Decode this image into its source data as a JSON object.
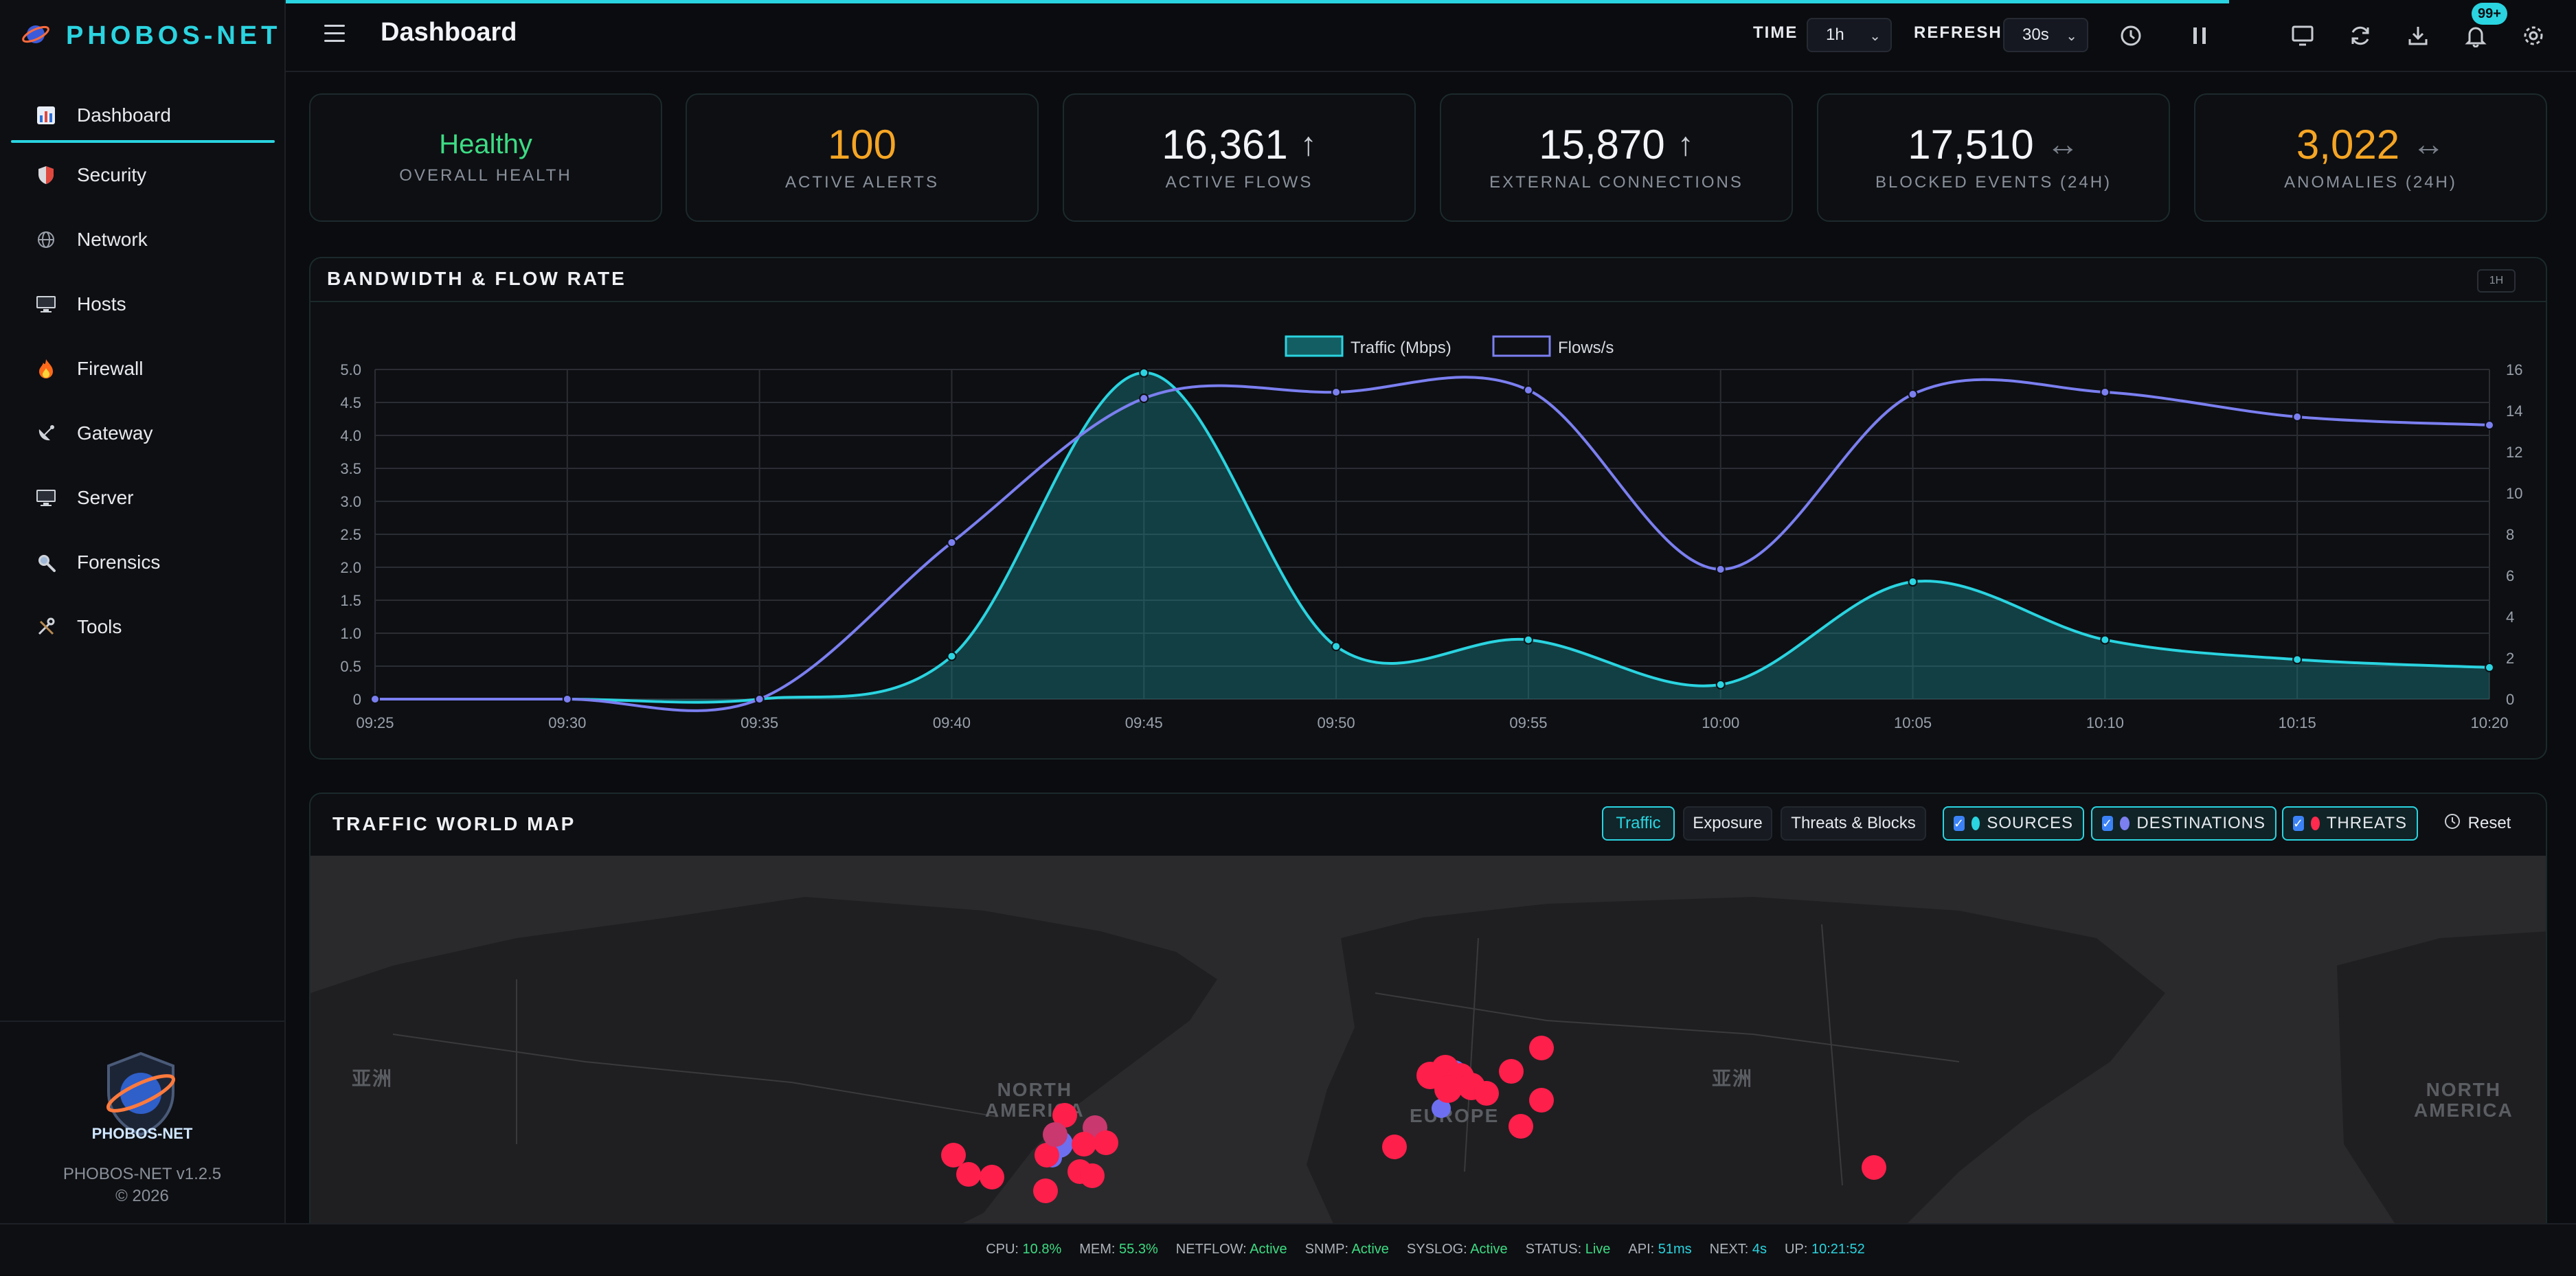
{
  "app": {
    "brand": "PHOBOS-NET",
    "version": "PHOBOS-NET v1.2.5",
    "copyright": "© 2026",
    "logo_text": "PHOBOS-NET"
  },
  "header": {
    "title": "Dashboard",
    "time_label": "TIME",
    "time_value": "1h",
    "refresh_label": "REFRESH",
    "refresh_value": "30s",
    "notifications_badge": "99+"
  },
  "sidebar": {
    "items": [
      {
        "label": "Dashboard",
        "icon": "chart-icon"
      },
      {
        "label": "Security",
        "icon": "shield-icon"
      },
      {
        "label": "Network",
        "icon": "globe-icon"
      },
      {
        "label": "Hosts",
        "icon": "monitor-icon"
      },
      {
        "label": "Firewall",
        "icon": "fire-icon"
      },
      {
        "label": "Gateway",
        "icon": "satellite-icon"
      },
      {
        "label": "Server",
        "icon": "desktop-icon"
      },
      {
        "label": "Forensics",
        "icon": "magnifier-icon"
      },
      {
        "label": "Tools",
        "icon": "tools-icon"
      }
    ]
  },
  "cards": [
    {
      "value": "Healthy",
      "label": "OVERALL HEALTH",
      "color": "#3ddc84",
      "arrow": ""
    },
    {
      "value": "100",
      "label": "ACTIVE ALERTS",
      "color": "#f5a524",
      "arrow": ""
    },
    {
      "value": "16,361",
      "label": "ACTIVE FLOWS",
      "color": "#f2f4f7",
      "arrow": "↑"
    },
    {
      "value": "15,870",
      "label": "EXTERNAL CONNECTIONS",
      "color": "#f2f4f7",
      "arrow": "↑"
    },
    {
      "value": "17,510",
      "label": "BLOCKED EVENTS (24H)",
      "color": "#f2f4f7",
      "arrow": "↔"
    },
    {
      "value": "3,022",
      "label": "ANOMALIES (24H)",
      "color": "#f5a524",
      "arrow": "↔"
    }
  ],
  "bandwidth": {
    "title": "BANDWIDTH & FLOW RATE",
    "range_tag": "1H"
  },
  "chart_data": {
    "type": "line",
    "x": [
      "09:25",
      "09:30",
      "09:35",
      "09:40",
      "09:45",
      "09:50",
      "09:55",
      "10:00",
      "10:05",
      "10:10",
      "10:15",
      "10:20"
    ],
    "series": [
      {
        "name": "Traffic (Mbps)",
        "axis": "left",
        "color": "#2ad4e0",
        "fill": true,
        "values": [
          0,
          0,
          0,
          0.65,
          4.95,
          0.8,
          0.9,
          0.22,
          1.78,
          0.9,
          0.6,
          0.48
        ]
      },
      {
        "name": "Flows/s",
        "axis": "right",
        "color": "#7b7ff0",
        "fill": false,
        "values": [
          0,
          0,
          0,
          7.6,
          14.6,
          14.9,
          15.0,
          6.3,
          14.8,
          14.9,
          13.7,
          13.3
        ]
      }
    ],
    "ylim_left": [
      0,
      5
    ],
    "yticks_left": [
      "0",
      "0.5",
      "1.0",
      "1.5",
      "2.0",
      "2.5",
      "3.0",
      "3.5",
      "4.0",
      "4.5",
      "5.0"
    ],
    "ylim_right": [
      0,
      16
    ],
    "yticks_right": [
      "0",
      "2",
      "4",
      "6",
      "8",
      "10",
      "12",
      "14",
      "16"
    ],
    "grid": true,
    "legend": "top-center"
  },
  "map": {
    "title": "TRAFFIC WORLD MAP",
    "modes": [
      "Traffic",
      "Exposure",
      "Threats & Blocks"
    ],
    "toggles": [
      {
        "label": "SOURCES",
        "color": "#2ad4e0"
      },
      {
        "label": "DESTINATIONS",
        "color": "#7b7ff0"
      },
      {
        "label": "THREATS",
        "color": "#ff2a4d"
      }
    ],
    "reset": "Reset",
    "zoom_in": "+",
    "zoom_out": "−",
    "labels": {
      "asia_left": "亚洲",
      "asia_mid": "亚洲",
      "north_america_1": "NORTH\nAMERICA",
      "europe": "EUROPE",
      "north_america_2": "NORTH\nAMERICA"
    }
  },
  "status": {
    "cpu_label": "CPU:",
    "cpu": "10.8%",
    "mem_label": "MEM:",
    "mem": "55.3%",
    "netflow_label": "NETFLOW:",
    "netflow": "Active",
    "snmp_label": "SNMP:",
    "snmp": "Active",
    "syslog_label": "SYSLOG:",
    "syslog": "Active",
    "status_label": "STATUS:",
    "status": "Live",
    "api_label": "API:",
    "api": "51ms",
    "next_label": "NEXT:",
    "next": "4s",
    "up_label": "UP:",
    "up": "10:21:52"
  }
}
